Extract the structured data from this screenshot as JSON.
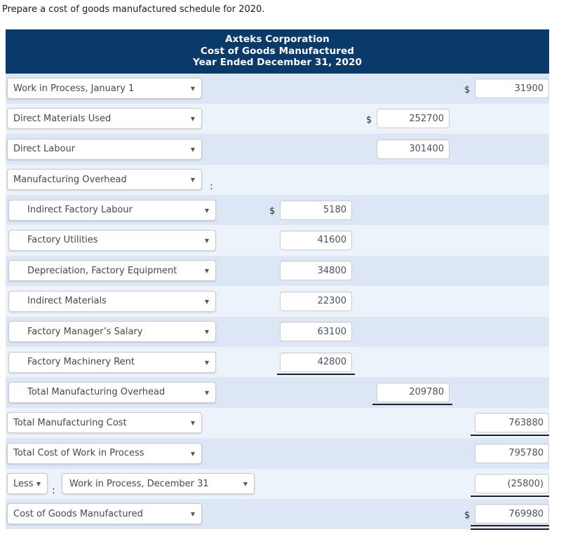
{
  "instruction": "Prepare a cost of goods manufactured schedule for 2020.",
  "header": {
    "line1": "Axteks Corporation",
    "line2": "Cost of Goods Manufactured",
    "line3": "Year Ended December 31, 2020"
  },
  "colors": {
    "header_bg": "#0a3a69",
    "row_dark": "#dce6f5",
    "row_light": "#edf3fa",
    "underline": "#1d2026",
    "dropdown_text": "#484848",
    "amount_text": "#4a5360"
  },
  "icons": {
    "dropdown_arrow": "▼"
  },
  "rows": [
    {
      "label": "Work in Process, January 1",
      "indent": false,
      "col": "right",
      "value": "31900",
      "dollar": true,
      "underline": "none"
    },
    {
      "label": "Direct Materials Used",
      "indent": false,
      "col": "mid",
      "value": "252700",
      "dollar": true,
      "underline": "none"
    },
    {
      "label": "Direct Labour",
      "indent": false,
      "col": "mid",
      "value": "301400",
      "dollar": false,
      "underline": "none"
    },
    {
      "label": "Manufacturing Overhead",
      "indent": false,
      "col": "none",
      "value": "",
      "dollar": false,
      "underline": "none",
      "colon": true
    },
    {
      "label": "Indirect Factory Labour",
      "indent": true,
      "col": "inner",
      "value": "5180",
      "dollar": true,
      "underline": "none"
    },
    {
      "label": "Factory Utilities",
      "indent": true,
      "col": "inner",
      "value": "41600",
      "dollar": false,
      "underline": "none"
    },
    {
      "label": "Depreciation, Factory Equipment",
      "indent": true,
      "col": "inner",
      "value": "34800",
      "dollar": false,
      "underline": "none"
    },
    {
      "label": "Indirect Materials",
      "indent": true,
      "col": "inner",
      "value": "22300",
      "dollar": false,
      "underline": "none"
    },
    {
      "label": "Factory Manager’s Salary",
      "indent": true,
      "col": "inner",
      "value": "63100",
      "dollar": false,
      "underline": "none"
    },
    {
      "label": "Factory Machinery Rent",
      "indent": true,
      "col": "inner",
      "value": "42800",
      "dollar": false,
      "underline": "single"
    },
    {
      "label": "Total Manufacturing Overhead",
      "indent": true,
      "col": "mid",
      "value": "209780",
      "dollar": false,
      "underline": "single"
    },
    {
      "label": "Total Manufacturing Cost",
      "indent": false,
      "col": "right",
      "value": "763880",
      "dollar": false,
      "underline": "single"
    },
    {
      "label": "Total Cost of Work in Process",
      "indent": false,
      "col": "right",
      "value": "795780",
      "dollar": false,
      "underline": "none"
    },
    {
      "less_label": "Less",
      "colon": true,
      "label": "Work in Process, December 31",
      "indent": false,
      "col": "right",
      "value": "(25800)",
      "dollar": false,
      "underline": "single"
    },
    {
      "label": "Cost of Goods Manufactured",
      "indent": false,
      "col": "right",
      "value": "769980",
      "dollar": true,
      "underline": "double"
    }
  ]
}
